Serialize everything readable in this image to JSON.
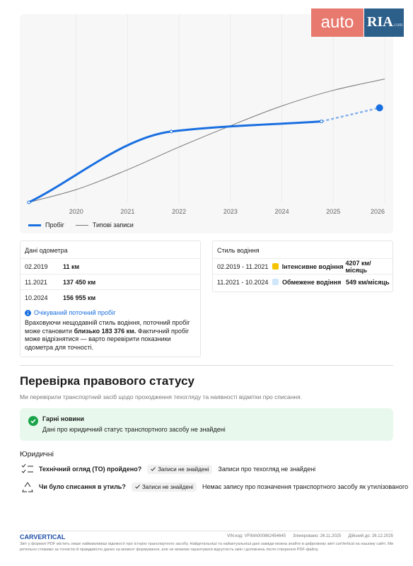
{
  "logo": {
    "left": "auto",
    "right": "RIA",
    "suffix": ".com"
  },
  "chart_data": {
    "type": "line",
    "xlim": [
      2019,
      2026
    ],
    "xticks": [
      2020,
      2021,
      2022,
      2023,
      2024,
      2025,
      2026
    ],
    "ylim": [
      0,
      365000
    ],
    "series": [
      {
        "name": "Пробіг",
        "color": "#1a6fe0",
        "x": [
          2019.08,
          2021.85,
          2024.77,
          2025.9
        ],
        "values": [
          11,
          137450,
          156955,
          183376
        ]
      },
      {
        "name": "Типові записи",
        "color": "#777777",
        "x": [
          2019.08,
          2020,
          2021,
          2022,
          2023,
          2024,
          2025,
          2026
        ],
        "values": [
          0,
          24750,
          63250,
          107250,
          148500,
          187000,
          217250,
          239250
        ]
      }
    ]
  },
  "odometer": {
    "title": "Дані одометра",
    "rows": [
      {
        "date": "02.2019",
        "value": "11 км"
      },
      {
        "date": "11.2021",
        "value": "137 450 км"
      },
      {
        "date": "10.2024",
        "value": "156 955 км"
      }
    ],
    "notice": {
      "title": "Очікуваний поточний пробіг",
      "before": "Враховуючи нещодавній стиль водіння, поточний пробіг може становити ",
      "bold": "близько 183 376 км.",
      "after": " Фактичний пробіг може відрізнятися — варто перевірити показники одометра для точності."
    }
  },
  "driving": {
    "title": "Стиль водіння",
    "rows": [
      {
        "period": "02.2019 - 11.2021",
        "color": "#f5c400",
        "label": "Інтенсивне водіння",
        "rate": "4207 км/місяць"
      },
      {
        "period": "11.2021 - 10.2024",
        "color": "#cfe6fb",
        "label": "Обмежене водіння",
        "rate": "549 км/місяць"
      }
    ]
  },
  "legal": {
    "title": "Перевірка правового статусу",
    "subtitle": "Ми перевірили транспортний засіб щодо проходження техогляду та наявності відмітки про списання.",
    "good_news": {
      "title": "Гарні новини",
      "text": "Дані про юридичний статус транспортного засобу не знайдені"
    },
    "subhead": "Юридичні",
    "items": [
      {
        "question": "Технічний огляд (ТО) пройдено?",
        "badge": "Записи не знайдені",
        "text": "Записи про техогляд не знайдені"
      },
      {
        "question": "Чи було списання в утиль?",
        "badge": "Записи не знайдені",
        "text": "Немає запису про позначення транспортного засобу як утилізованого"
      }
    ]
  },
  "footer": {
    "brand": "CARVERTICAL",
    "vin": "VIN-код: VFIMA000862454645",
    "generated": "Згенеровано: 26.11.2025",
    "valid": "Дійсний до: 26.12.2025",
    "disclaimer": "Звіт у форматі PDF містить лише найважливіші відомості про історію транспортного засобу. Найдетальніші та найактуальніші дані завжди можна знайти в цифровому звіті carVertical на нашому сайті. Ми ретельно стежимо за точністю й правдивістю даних на момент формування, але не можемо гарантувати відсутність змін і доповнень після створення PDF-файлу."
  }
}
